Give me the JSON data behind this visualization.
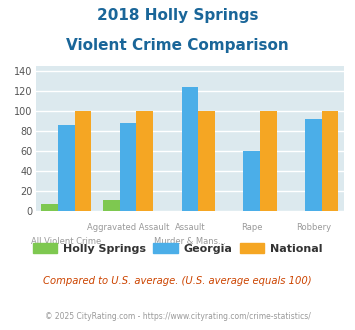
{
  "title_line1": "2018 Holly Springs",
  "title_line2": "Violent Crime Comparison",
  "holly_springs": [
    7,
    11,
    0,
    0,
    0
  ],
  "georgia": [
    86,
    88,
    124,
    60,
    92
  ],
  "national": [
    100,
    100,
    100,
    100,
    100
  ],
  "x_groups": [
    0,
    1,
    2,
    3,
    4
  ],
  "x_labels_top": [
    "",
    "Aggravated Assault",
    "Assault",
    "Rape",
    "Robbery"
  ],
  "x_labels_bot": [
    "All Violent Crime",
    "",
    "Murder & Mans...",
    "",
    ""
  ],
  "ylim": [
    0,
    145
  ],
  "yticks": [
    0,
    20,
    40,
    60,
    80,
    100,
    120,
    140
  ],
  "color_holly": "#7ec850",
  "color_georgia": "#4baee8",
  "color_national": "#f5a623",
  "title_color": "#1a6699",
  "bg_color": "#dce9ee",
  "grid_color": "#ffffff",
  "xlabel_color": "#999999",
  "footnote_color": "#999999",
  "compared_color": "#cc4400",
  "bar_width": 0.27,
  "legend_labels": [
    "Holly Springs",
    "Georgia",
    "National"
  ],
  "footnote1": "Compared to U.S. average. (U.S. average equals 100)",
  "footnote2": "© 2025 CityRating.com - https://www.cityrating.com/crime-statistics/"
}
